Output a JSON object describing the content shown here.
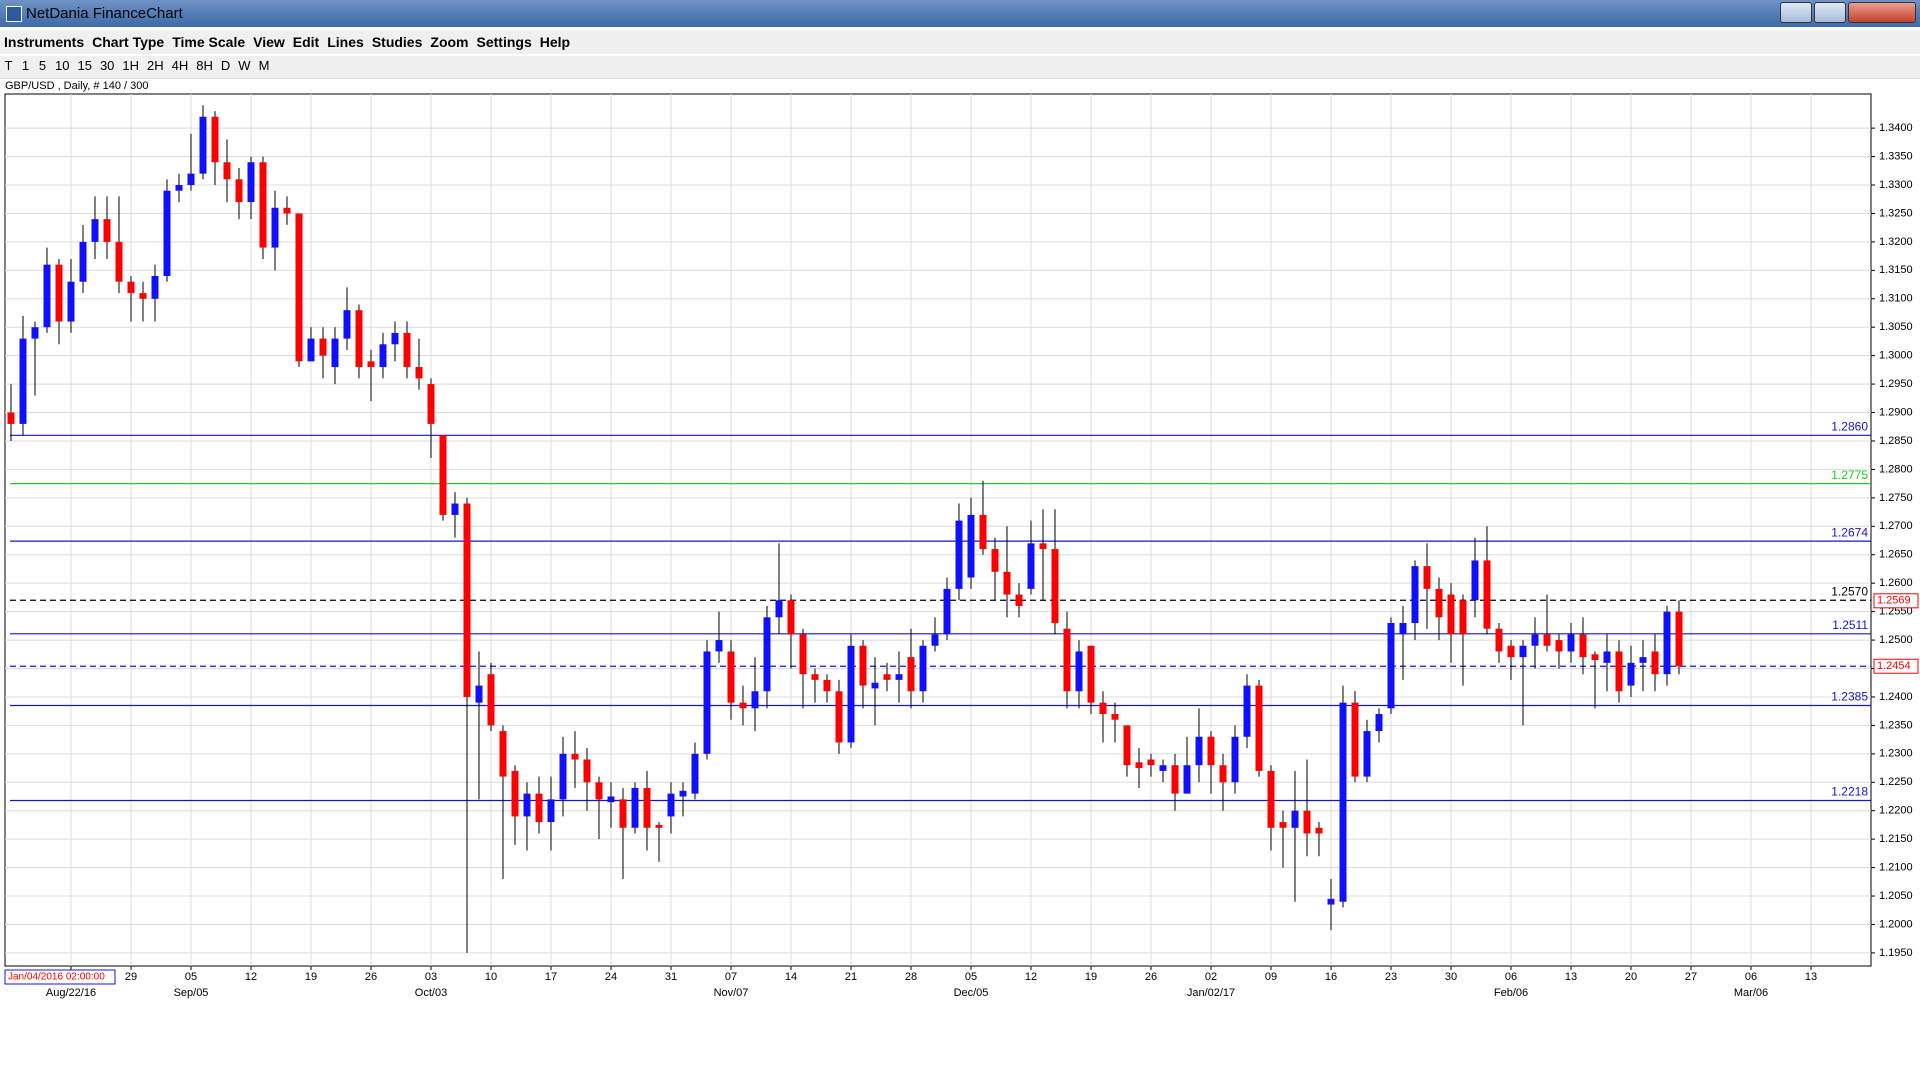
{
  "window": {
    "title": "NetDania FinanceChart"
  },
  "menu": [
    "Instruments",
    "Chart Type",
    "Time Scale",
    "View",
    "Edit",
    "Lines",
    "Studies",
    "Zoom",
    "Settings",
    "Help"
  ],
  "toolbar": [
    "T",
    "1",
    "5",
    "10",
    "15",
    "30",
    "1H",
    "2H",
    "4H",
    "8H",
    "D",
    "W",
    "M"
  ],
  "chart_data": {
    "type": "candlestick",
    "title": "GBP/USD , Daily, # 140 / 300",
    "cursor_label": "Jan/04/2016 02:00:00",
    "up_color": "#1010ff",
    "down_color": "#ff0000",
    "open": [
      1.29,
      1.288,
      1.303,
      1.305,
      1.316,
      1.306,
      1.313,
      1.32,
      1.324,
      1.32,
      1.313,
      1.311,
      1.31,
      1.314,
      1.329,
      1.33,
      1.332,
      1.342,
      1.334,
      1.331,
      1.327,
      1.334,
      1.319,
      1.326,
      1.325,
      1.299,
      1.303,
      1.298,
      1.303,
      1.308,
      1.299,
      1.298,
      1.302,
      1.304,
      1.298,
      1.295,
      1.286,
      1.272,
      1.274,
      1.239,
      1.244,
      1.234,
      1.227,
      1.219,
      1.223,
      1.218,
      1.222,
      1.23,
      1.229,
      1.225,
      1.2215,
      1.222,
      1.217,
      1.224,
      1.2175,
      1.219,
      1.2225,
      1.223,
      1.23,
      1.248,
      1.248,
      1.239,
      1.238,
      1.241,
      1.254,
      1.257,
      1.251,
      1.244,
      1.243,
      1.241,
      1.232,
      1.249,
      1.2415,
      1.244,
      1.243,
      1.247,
      1.241,
      1.249,
      1.251,
      1.259,
      1.261,
      1.272,
      1.266,
      1.262,
      1.258,
      1.259,
      1.267,
      1.266,
      1.252,
      1.241,
      1.249,
      1.239,
      1.237,
      1.235,
      1.2285,
      1.229,
      1.227,
      1.228,
      1.223,
      1.228,
      1.233,
      1.228,
      1.225,
      1.233,
      1.242,
      1.227,
      1.218,
      1.217,
      1.22,
      1.217,
      1.2035,
      1.204,
      1.239,
      1.226,
      1.234,
      1.238,
      1.251,
      1.253,
      1.263,
      1.259,
      1.258,
      1.257,
      1.257,
      1.264,
      1.252,
      1.249,
      1.247,
      1.249,
      1.251,
      1.25,
      1.248,
      1.251,
      1.2475,
      1.246,
      1.248,
      1.242,
      1.246,
      1.248,
      1.244,
      1.255
    ],
    "high": [
      1.295,
      1.307,
      1.306,
      1.319,
      1.317,
      1.317,
      1.323,
      1.328,
      1.328,
      1.328,
      1.314,
      1.313,
      1.316,
      1.331,
      1.332,
      1.339,
      1.344,
      1.343,
      1.338,
      1.333,
      1.335,
      1.335,
      1.329,
      1.328,
      1.325,
      1.305,
      1.305,
      1.305,
      1.312,
      1.309,
      1.301,
      1.304,
      1.306,
      1.306,
      1.303,
      1.296,
      1.286,
      1.276,
      1.275,
      1.248,
      1.246,
      1.235,
      1.228,
      1.225,
      1.226,
      1.226,
      1.233,
      1.234,
      1.231,
      1.226,
      1.225,
      1.224,
      1.225,
      1.227,
      1.218,
      1.225,
      1.225,
      1.232,
      1.25,
      1.255,
      1.25,
      1.242,
      1.247,
      1.256,
      1.267,
      1.258,
      1.252,
      1.245,
      1.244,
      1.243,
      1.251,
      1.25,
      1.247,
      1.246,
      1.248,
      1.252,
      1.25,
      1.254,
      1.261,
      1.274,
      1.275,
      1.278,
      1.268,
      1.27,
      1.26,
      1.271,
      1.273,
      1.273,
      1.255,
      1.25,
      1.249,
      1.241,
      1.239,
      1.235,
      1.231,
      1.23,
      1.229,
      1.23,
      1.233,
      1.238,
      1.234,
      1.23,
      1.235,
      1.244,
      1.243,
      1.228,
      1.22,
      1.227,
      1.229,
      1.218,
      1.208,
      1.242,
      1.241,
      1.236,
      1.238,
      1.254,
      1.256,
      1.264,
      1.267,
      1.261,
      1.26,
      1.258,
      1.268,
      1.27,
      1.253,
      1.25,
      1.25,
      1.254,
      1.258,
      1.251,
      1.253,
      1.254,
      1.248,
      1.251,
      1.25,
      1.249,
      1.25,
      1.251,
      1.256,
      1.257
    ],
    "low": [
      1.285,
      1.286,
      1.293,
      1.304,
      1.302,
      1.304,
      1.311,
      1.317,
      1.317,
      1.311,
      1.306,
      1.306,
      1.306,
      1.313,
      1.327,
      1.329,
      1.331,
      1.33,
      1.327,
      1.324,
      1.324,
      1.317,
      1.315,
      1.323,
      1.298,
      1.299,
      1.296,
      1.295,
      1.301,
      1.296,
      1.292,
      1.296,
      1.299,
      1.296,
      1.294,
      1.282,
      1.271,
      1.268,
      1.195,
      1.222,
      1.234,
      1.208,
      1.214,
      1.213,
      1.216,
      1.213,
      1.219,
      1.224,
      1.22,
      1.215,
      1.217,
      1.208,
      1.216,
      1.213,
      1.211,
      1.216,
      1.219,
      1.222,
      1.229,
      1.246,
      1.236,
      1.235,
      1.234,
      1.238,
      1.251,
      1.245,
      1.238,
      1.239,
      1.239,
      1.23,
      1.231,
      1.238,
      1.235,
      1.241,
      1.239,
      1.238,
      1.239,
      1.248,
      1.25,
      1.257,
      1.259,
      1.265,
      1.257,
      1.254,
      1.254,
      1.258,
      1.257,
      1.251,
      1.238,
      1.238,
      1.237,
      1.232,
      1.232,
      1.226,
      1.224,
      1.226,
      1.225,
      1.22,
      1.223,
      1.225,
      1.223,
      1.22,
      1.223,
      1.231,
      1.226,
      1.213,
      1.21,
      1.204,
      1.212,
      1.212,
      1.199,
      1.203,
      1.225,
      1.225,
      1.232,
      1.237,
      1.243,
      1.25,
      1.252,
      1.25,
      1.246,
      1.242,
      1.254,
      1.251,
      1.246,
      1.243,
      1.235,
      1.245,
      1.248,
      1.245,
      1.246,
      1.244,
      1.238,
      1.241,
      1.239,
      1.24,
      1.241,
      1.241,
      1.242,
      1.244
    ],
    "close": [
      1.288,
      1.303,
      1.305,
      1.316,
      1.306,
      1.313,
      1.32,
      1.324,
      1.32,
      1.313,
      1.311,
      1.31,
      1.314,
      1.329,
      1.33,
      1.332,
      1.342,
      1.334,
      1.331,
      1.327,
      1.334,
      1.319,
      1.326,
      1.325,
      1.299,
      1.303,
      1.3,
      1.303,
      1.308,
      1.298,
      1.298,
      1.302,
      1.304,
      1.298,
      1.296,
      1.288,
      1.272,
      1.274,
      1.24,
      1.242,
      1.235,
      1.226,
      1.219,
      1.223,
      1.218,
      1.222,
      1.23,
      1.229,
      1.225,
      1.222,
      1.2225,
      1.217,
      1.224,
      1.217,
      1.217,
      1.223,
      1.2235,
      1.23,
      1.248,
      1.25,
      1.239,
      1.238,
      1.241,
      1.254,
      1.257,
      1.251,
      1.244,
      1.243,
      1.241,
      1.232,
      1.249,
      1.242,
      1.2425,
      1.243,
      1.244,
      1.241,
      1.249,
      1.251,
      1.259,
      1.271,
      1.272,
      1.266,
      1.262,
      1.258,
      1.256,
      1.267,
      1.266,
      1.253,
      1.241,
      1.248,
      1.239,
      1.237,
      1.236,
      1.228,
      1.2275,
      1.228,
      1.228,
      1.223,
      1.228,
      1.233,
      1.228,
      1.225,
      1.233,
      1.242,
      1.227,
      1.217,
      1.217,
      1.22,
      1.216,
      1.216,
      1.2045,
      1.239,
      1.226,
      1.234,
      1.237,
      1.253,
      1.253,
      1.263,
      1.259,
      1.254,
      1.251,
      1.251,
      1.264,
      1.252,
      1.248,
      1.247,
      1.249,
      1.251,
      1.249,
      1.248,
      1.251,
      1.247,
      1.2465,
      1.248,
      1.241,
      1.246,
      1.247,
      1.244,
      1.255,
      1.2454
    ],
    "ylim": [
      1.1927,
      1.346
    ],
    "yticks": [
      {
        "value": 1.195,
        "label": "1.1950"
      },
      {
        "value": 1.2,
        "label": "1.2000"
      },
      {
        "value": 1.205,
        "label": "1.2050"
      },
      {
        "value": 1.21,
        "label": "1.2100"
      },
      {
        "value": 1.215,
        "label": "1.2150"
      },
      {
        "value": 1.22,
        "label": "1.2200"
      },
      {
        "value": 1.225,
        "label": "1.2250"
      },
      {
        "value": 1.23,
        "label": "1.2300"
      },
      {
        "value": 1.235,
        "label": "1.2350"
      },
      {
        "value": 1.24,
        "label": "1.2400"
      },
      {
        "value": 1.245,
        "label": "1.2450"
      },
      {
        "value": 1.25,
        "label": "1.2500"
      },
      {
        "value": 1.255,
        "label": "1.2550"
      },
      {
        "value": 1.26,
        "label": "1.2600"
      },
      {
        "value": 1.265,
        "label": "1.2650"
      },
      {
        "value": 1.27,
        "label": "1.2700"
      },
      {
        "value": 1.275,
        "label": "1.2750"
      },
      {
        "value": 1.28,
        "label": "1.2800"
      },
      {
        "value": 1.285,
        "label": "1.2850"
      },
      {
        "value": 1.29,
        "label": "1.2900"
      },
      {
        "value": 1.295,
        "label": "1.2950"
      },
      {
        "value": 1.3,
        "label": "1.3000"
      },
      {
        "value": 1.305,
        "label": "1.3050"
      },
      {
        "value": 1.31,
        "label": "1.3100"
      },
      {
        "value": 1.315,
        "label": "1.3150"
      },
      {
        "value": 1.32,
        "label": "1.3200"
      },
      {
        "value": 1.325,
        "label": "1.3250"
      },
      {
        "value": 1.33,
        "label": "1.3300"
      },
      {
        "value": 1.335,
        "label": "1.3350"
      },
      {
        "value": 1.34,
        "label": "1.3400"
      }
    ],
    "week_labels": [
      null,
      "29",
      "05",
      "12",
      "19",
      "26",
      "03",
      "10",
      "17",
      "24",
      "31",
      "07",
      "14",
      "21",
      "28",
      "05",
      "12",
      "19",
      "26",
      "02",
      "09",
      "16",
      "23",
      "30",
      "06",
      "13",
      "20",
      "27",
      "06",
      "13"
    ],
    "month_labels": [
      "Aug/22/16",
      null,
      "Sep/05",
      null,
      null,
      null,
      "Oct/03",
      null,
      null,
      null,
      null,
      "Nov/07",
      null,
      null,
      null,
      "Dec/05",
      null,
      null,
      null,
      "Jan/02/17",
      null,
      null,
      null,
      null,
      "Feb/06",
      null,
      null,
      null,
      "Mar/06",
      null
    ],
    "grid": true,
    "price_lines": [
      {
        "value": 1.286,
        "label": "1.2860",
        "color": "#1515d0",
        "style": "solid"
      },
      {
        "value": 1.2775,
        "label": "1.2775",
        "color": "#22cc22",
        "style": "solid"
      },
      {
        "value": 1.2674,
        "label": "1.2674",
        "color": "#1515d0",
        "style": "solid"
      },
      {
        "value": 1.257,
        "label": "1.2570",
        "color": "#000000",
        "style": "dashed"
      },
      {
        "value": 1.2511,
        "label": "1.2511",
        "color": "#1515d0",
        "style": "solid"
      },
      {
        "value": 1.2454,
        "color": "#1515d0",
        "style": "dashed"
      },
      {
        "value": 1.2385,
        "label": "1.2385",
        "color": "#1515d0",
        "style": "solid"
      },
      {
        "value": 1.2218,
        "label": "1.2218",
        "color": "#1515d0",
        "style": "solid"
      }
    ],
    "price_markers": [
      {
        "value": 1.2569,
        "label": "1.2569"
      },
      {
        "value": 1.2454,
        "label": "1.2454"
      }
    ]
  }
}
